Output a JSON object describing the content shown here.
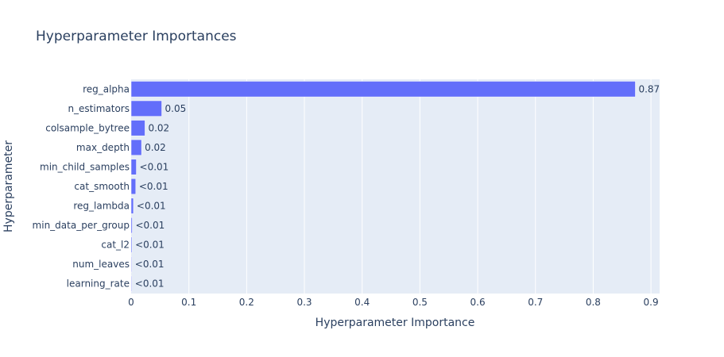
{
  "chart_data": {
    "type": "bar",
    "orientation": "horizontal",
    "title": "Hyperparameter Importances",
    "xlabel": "Hyperparameter Importance",
    "ylabel": "Hyperparameter",
    "categories": [
      "reg_alpha",
      "n_estimators",
      "colsample_bytree",
      "max_depth",
      "min_child_samples",
      "cat_smooth",
      "reg_lambda",
      "min_data_per_group",
      "cat_l2",
      "num_leaves",
      "learning_rate"
    ],
    "values": [
      0.873,
      0.053,
      0.024,
      0.018,
      0.009,
      0.008,
      0.004,
      0.002,
      0.0015,
      0.001,
      0.0008
    ],
    "data_labels": [
      "0.87",
      "0.05",
      "0.02",
      "0.02",
      "<0.01",
      "<0.01",
      "<0.01",
      "<0.01",
      "<0.01",
      "<0.01",
      "<0.01"
    ],
    "xlim": [
      0,
      0.915
    ],
    "xticks": [
      0,
      0.1,
      0.2,
      0.3,
      0.4,
      0.5,
      0.6,
      0.7,
      0.8,
      0.9
    ],
    "xtick_labels": [
      "0",
      "0.1",
      "0.2",
      "0.3",
      "0.4",
      "0.5",
      "0.6",
      "0.7",
      "0.8",
      "0.9"
    ],
    "grid": true,
    "colors": {
      "bar": "#636efa",
      "plot_bg": "#e5ecf6",
      "grid": "#ffffff",
      "text": "#2a3f5f"
    }
  }
}
